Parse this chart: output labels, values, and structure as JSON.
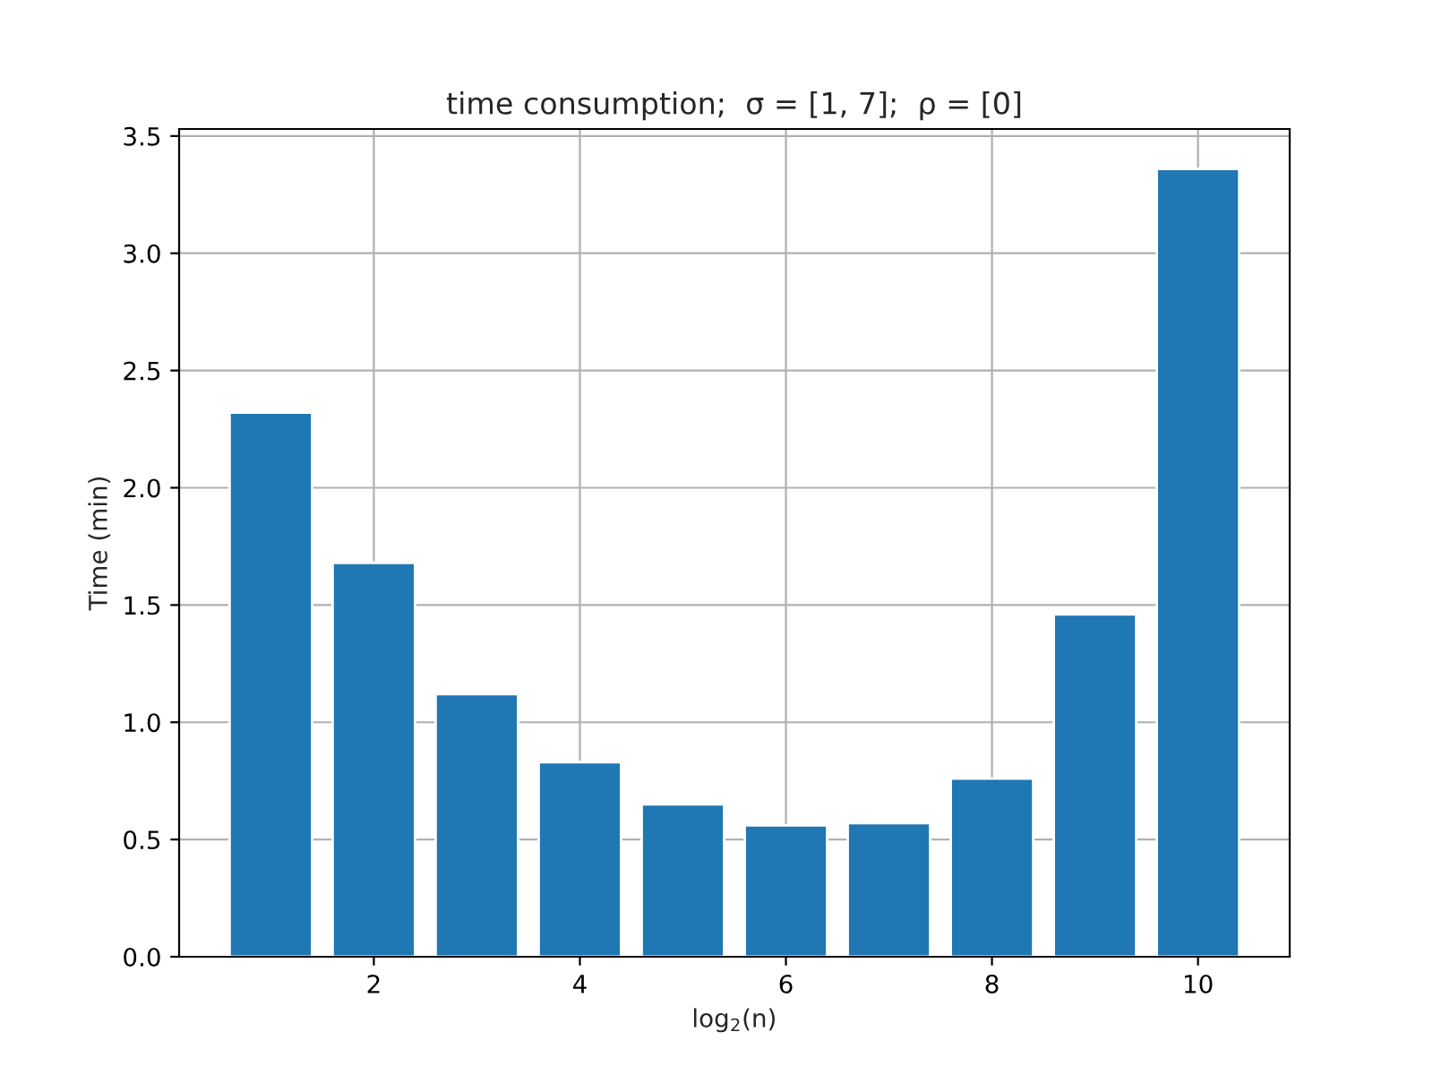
{
  "chart_data": {
    "type": "bar",
    "title": "time consumption;  σ = [1, 7];  ρ = [0]",
    "xlabel": "log$_{2}$(n)",
    "ylabel": "Time (min)",
    "x": [
      1,
      2,
      3,
      4,
      5,
      6,
      7,
      8,
      9,
      10
    ],
    "values": [
      2.32,
      1.68,
      1.12,
      0.83,
      0.65,
      0.56,
      0.57,
      0.76,
      1.46,
      3.36
    ],
    "color": "#1f77b4",
    "xlim": [
      0.11,
      10.89
    ],
    "xticks": [
      2,
      4,
      6,
      8,
      10
    ],
    "ylim": [
      0,
      3.53
    ],
    "yticks": [
      {
        "value": 0,
        "label": "0.0"
      },
      0.5,
      {
        "value": 1,
        "label": "1.0"
      },
      1.5,
      {
        "value": 2,
        "label": "2.0"
      },
      2.5,
      {
        "value": 3,
        "label": "3.0"
      },
      3.5
    ],
    "grid": true
  }
}
